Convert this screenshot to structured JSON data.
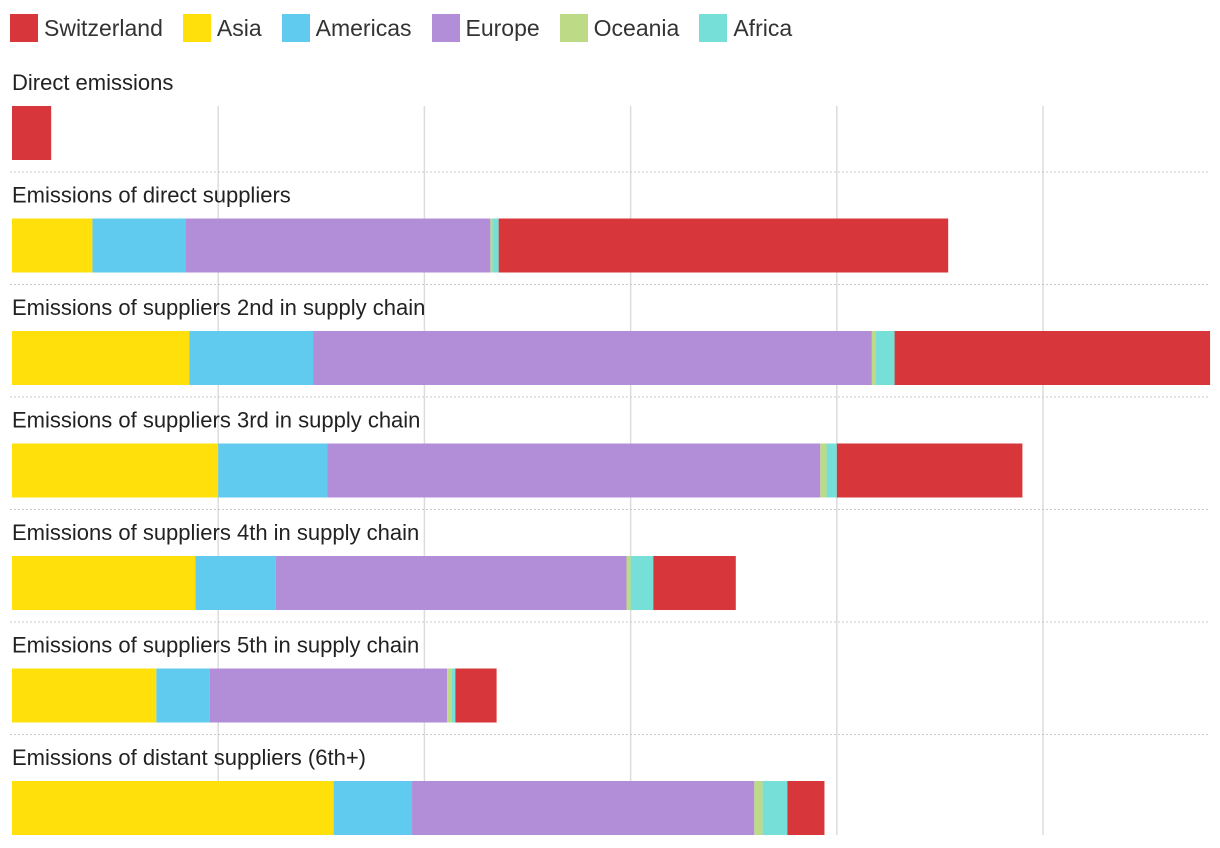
{
  "legend": [
    {
      "label": "Switzerland",
      "color": "#d7373a"
    },
    {
      "label": "Asia",
      "color": "#ffe00a"
    },
    {
      "label": "Americas",
      "color": "#60cbee"
    },
    {
      "label": "Europe",
      "color": "#b38ed8"
    },
    {
      "label": "Oceania",
      "color": "#bdda87"
    },
    {
      "label": "Africa",
      "color": "#76e0d8"
    }
  ],
  "chart_data": {
    "type": "bar",
    "orientation": "horizontal",
    "stacked": true,
    "title": "",
    "xlabel": "",
    "ylabel": "",
    "xlim": [
      0,
      580
    ],
    "x_gridlines": [
      0,
      100,
      200,
      300,
      400,
      500
    ],
    "legend_position": "top-left",
    "categories": [
      "Direct emissions",
      "Emissions of direct suppliers",
      "Emissions of suppliers 2nd in supply chain",
      "Emissions of suppliers 3rd in supply chain",
      "Emissions of suppliers 4th in supply chain",
      "Emissions of suppliers 5th in supply chain",
      "Emissions of distant suppliers (6th+)"
    ],
    "segment_order": [
      "Asia",
      "Americas",
      "Europe",
      "Oceania",
      "Africa",
      "Switzerland"
    ],
    "series": [
      {
        "name": "Asia",
        "color": "#ffe00a",
        "values": [
          0,
          39,
          86,
          100,
          89,
          70,
          156
        ]
      },
      {
        "name": "Americas",
        "color": "#60cbee",
        "values": [
          0,
          45,
          60,
          53,
          39,
          26,
          38
        ]
      },
      {
        "name": "Europe",
        "color": "#b38ed8",
        "values": [
          0,
          148,
          271,
          239,
          170,
          115,
          166
        ]
      },
      {
        "name": "Oceania",
        "color": "#bdda87",
        "values": [
          0,
          1,
          2,
          3,
          2,
          2,
          4
        ]
      },
      {
        "name": "Africa",
        "color": "#76e0d8",
        "values": [
          0,
          3,
          9,
          5,
          11,
          2,
          12
        ]
      },
      {
        "name": "Switzerland",
        "color": "#d7373a",
        "values": [
          19,
          218,
          153,
          90,
          40,
          20,
          18
        ]
      }
    ]
  }
}
